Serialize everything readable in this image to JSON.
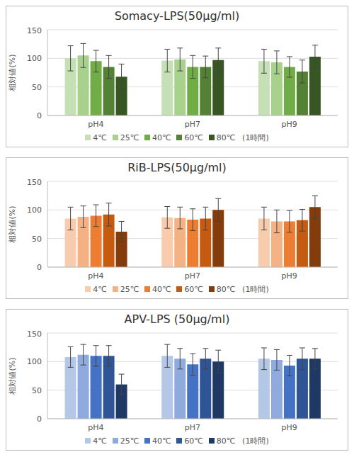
{
  "chart_data": [
    {
      "type": "bar",
      "title": "Somacy-LPS(50μg/ml)",
      "ylabel": "相対値(%)",
      "categories": [
        "pH4",
        "pH7",
        "pH9"
      ],
      "ylim": [
        0,
        150
      ],
      "yticks": [
        0,
        50,
        100,
        150
      ],
      "grid": true,
      "legend": "bottom",
      "annotations": [
        "(1時間)"
      ],
      "series": [
        {
          "name": "4℃",
          "color": "#c5e0b4",
          "values": [
            100,
            96,
            95
          ],
          "errors": [
            22,
            20,
            21
          ]
        },
        {
          "name": "25℃",
          "color": "#a9d18e",
          "values": [
            105,
            98,
            93
          ],
          "errors": [
            21,
            20,
            20
          ]
        },
        {
          "name": "40℃",
          "color": "#70ad47",
          "values": [
            95,
            85,
            85
          ],
          "errors": [
            19,
            20,
            18
          ]
        },
        {
          "name": "60℃",
          "color": "#548235",
          "values": [
            85,
            85,
            77
          ],
          "errors": [
            20,
            19,
            20
          ]
        },
        {
          "name": "80℃",
          "color": "#375623",
          "values": [
            68,
            97,
            103
          ],
          "errors": [
            22,
            21,
            20
          ]
        }
      ]
    },
    {
      "type": "bar",
      "title": "RiB-LPS(50μg/ml)",
      "ylabel": "相対値(%)",
      "categories": [
        "pH4",
        "pH7",
        "pH9"
      ],
      "ylim": [
        0,
        150
      ],
      "yticks": [
        0,
        50,
        100,
        150
      ],
      "grid": true,
      "legend": "bottom",
      "annotations": [
        "(1時間)"
      ],
      "series": [
        {
          "name": "4℃",
          "color": "#f8cbad",
          "values": [
            85,
            87,
            85
          ],
          "errors": [
            20,
            19,
            20
          ]
        },
        {
          "name": "25℃",
          "color": "#f4b183",
          "values": [
            88,
            86,
            80
          ],
          "errors": [
            19,
            19,
            20
          ]
        },
        {
          "name": "40℃",
          "color": "#ed7d31",
          "values": [
            90,
            83,
            80
          ],
          "errors": [
            19,
            19,
            19
          ]
        },
        {
          "name": "60℃",
          "color": "#c55a11",
          "values": [
            92,
            85,
            82
          ],
          "errors": [
            20,
            20,
            19
          ]
        },
        {
          "name": "80℃",
          "color": "#843c0c",
          "values": [
            62,
            100,
            105
          ],
          "errors": [
            18,
            20,
            20
          ]
        }
      ]
    },
    {
      "type": "bar",
      "title": "APV-LPS (50μg/ml)",
      "ylabel": "相対値(%)",
      "categories": [
        "pH4",
        "pH7",
        "pH9"
      ],
      "ylim": [
        0,
        150
      ],
      "yticks": [
        0,
        50,
        100,
        150
      ],
      "grid": true,
      "legend": "bottom",
      "annotations": [
        "(1時間)"
      ],
      "series": [
        {
          "name": "4℃",
          "color": "#b4c7e7",
          "values": [
            108,
            110,
            105
          ],
          "errors": [
            18,
            20,
            19
          ]
        },
        {
          "name": "25℃",
          "color": "#8faadc",
          "values": [
            112,
            105,
            103
          ],
          "errors": [
            18,
            18,
            18
          ]
        },
        {
          "name": "40℃",
          "color": "#4472c4",
          "values": [
            110,
            95,
            93
          ],
          "errors": [
            18,
            19,
            18
          ]
        },
        {
          "name": "60℃",
          "color": "#2f5597",
          "values": [
            110,
            105,
            105
          ],
          "errors": [
            18,
            18,
            19
          ]
        },
        {
          "name": "80℃",
          "color": "#203864",
          "values": [
            60,
            100,
            105
          ],
          "errors": [
            18,
            20,
            18
          ]
        }
      ]
    }
  ]
}
